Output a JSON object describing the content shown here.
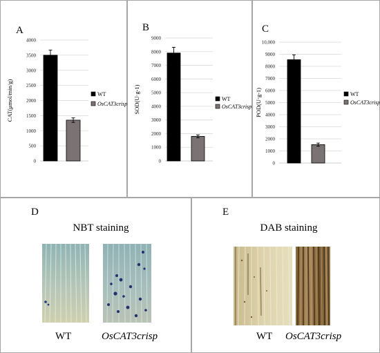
{
  "chart_data": [
    {
      "type": "bar",
      "panel_letter": "A",
      "ylabel": "CAT(μmol/min/g)",
      "categories": [
        "WT",
        "OsCAT3crisp"
      ],
      "values": [
        3500,
        1350
      ],
      "errors": [
        170,
        75
      ],
      "colors": [
        "#000000",
        "#7b7373"
      ],
      "ylim": [
        0,
        4000
      ],
      "yticks": [
        0,
        500,
        1000,
        1500,
        2000,
        2500,
        3000,
        3500,
        4000
      ],
      "ytick_labels": [
        "0",
        "500",
        "1000",
        "1500",
        "2000",
        "2500",
        "3000",
        "3500",
        "4000"
      ],
      "grid": true,
      "legend": [
        {
          "label": "WT",
          "italic": false
        },
        {
          "label": "OsCAT3crisp",
          "italic": true
        }
      ],
      "legend_position": "right"
    },
    {
      "type": "bar",
      "panel_letter": "B",
      "ylabel": "SOD(U·g-1)",
      "categories": [
        "WT",
        "OsCAT3crisp"
      ],
      "values": [
        7900,
        1800
      ],
      "errors": [
        420,
        110
      ],
      "colors": [
        "#000000",
        "#7b7373"
      ],
      "ylim": [
        0,
        9000
      ],
      "yticks": [
        0,
        1000,
        2000,
        3000,
        4000,
        5000,
        6000,
        7000,
        8000,
        9000
      ],
      "ytick_labels": [
        "0",
        "1000",
        "2000",
        "3000",
        "4000",
        "5000",
        "6000",
        "7000",
        "8000",
        "9000"
      ],
      "grid": true,
      "legend": [
        {
          "label": "WT",
          "italic": false
        },
        {
          "label": "OsCAT3crisp",
          "italic": true
        }
      ],
      "legend_position": "right"
    },
    {
      "type": "bar",
      "panel_letter": "C",
      "ylabel": "POD(U·g-1)",
      "categories": [
        "WT",
        "OsCAT3crisp"
      ],
      "values": [
        8550,
        1520
      ],
      "errors": [
        400,
        130
      ],
      "colors": [
        "#000000",
        "#7b7373"
      ],
      "ylim": [
        0,
        10000
      ],
      "yticks": [
        0,
        1000,
        2000,
        3000,
        4000,
        5000,
        6000,
        7000,
        8000,
        9000,
        10000
      ],
      "ytick_labels": [
        "0",
        "1000",
        "2000",
        "3000",
        "4000",
        "5000",
        "6000",
        "7000",
        "8000",
        "9000",
        "10,000"
      ],
      "grid": true,
      "legend": [
        {
          "label": "WT",
          "italic": false
        },
        {
          "label": "OsCAT3crisp",
          "italic": true
        }
      ],
      "legend_position": "right"
    }
  ],
  "staining": [
    {
      "panel_letter": "D",
      "title": "NBT staining",
      "labels": [
        {
          "text": "WT",
          "italic": false
        },
        {
          "text": "OsCAT3crisp",
          "italic": true
        }
      ]
    },
    {
      "panel_letter": "E",
      "title": "DAB staining",
      "labels": [
        {
          "text": "WT",
          "italic": false
        },
        {
          "text": "OsCAT3crisp",
          "italic": true
        }
      ]
    }
  ]
}
